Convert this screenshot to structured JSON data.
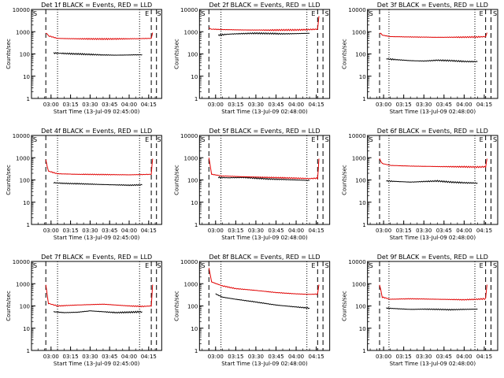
{
  "colors": {
    "events": "#000000",
    "lld": "#e00000",
    "axis": "#000000"
  },
  "chart_data": [
    {
      "type": "line",
      "title": "Det 1f BLACK = Events, RED = LLD",
      "xlabel": "Start Time (13-Jul-09 02:45:00)",
      "ylabel": "Counts/sec",
      "xlim": [
        "02:45",
        "04:25"
      ],
      "ylim": [
        1,
        10000
      ],
      "yscale": "log",
      "yticks": [
        "1",
        "10",
        "100",
        "1000",
        "10000"
      ],
      "xticks": [
        "03:00",
        "03:15",
        "03:30",
        "03:45",
        "04:00",
        "04:15"
      ],
      "markers": {
        "S_left": "S",
        "E": "E",
        "S_right": "S"
      },
      "dashed_lines": [
        "02:56",
        "04:17",
        "04:21"
      ],
      "dotted_lines": [
        "03:05",
        "04:08"
      ],
      "series": [
        {
          "color": "black",
          "x": [
            "03:02",
            "03:10",
            "03:20",
            "03:30",
            "03:40",
            "03:50",
            "04:00",
            "04:10"
          ],
          "values": [
            110,
            105,
            100,
            95,
            90,
            88,
            90,
            92
          ]
        },
        {
          "color": "red",
          "x": [
            "02:56",
            "02:58",
            "03:05",
            "03:20",
            "03:40",
            "04:00",
            "04:10",
            "04:17",
            "04:18"
          ],
          "values": [
            900,
            650,
            500,
            480,
            470,
            480,
            490,
            500,
            900
          ]
        }
      ]
    },
    {
      "type": "line",
      "title": "Det 2f BLACK = Events, RED = LLD",
      "xlabel": "Start Time (13-Jul-09 02:48:00)",
      "ylabel": "Counts/sec",
      "xlim": [
        "02:48",
        "04:25"
      ],
      "ylim": [
        1,
        10000
      ],
      "yscale": "log",
      "yticks": [
        "1",
        "10",
        "100",
        "1000",
        "10000"
      ],
      "xticks": [
        "03:00",
        "03:15",
        "03:30",
        "03:45",
        "04:00",
        "04:15"
      ],
      "markers": {
        "S_left": "S",
        "E": "E",
        "S_right": "S"
      },
      "dashed_lines": [
        "02:55",
        "04:16",
        "04:20"
      ],
      "dotted_lines": [
        "03:04",
        "04:08"
      ],
      "series": [
        {
          "color": "black",
          "x": [
            "03:02",
            "03:10",
            "03:20",
            "03:30",
            "03:40",
            "03:50",
            "04:00",
            "04:10"
          ],
          "values": [
            700,
            780,
            820,
            850,
            830,
            800,
            820,
            850
          ]
        },
        {
          "color": "red",
          "x": [
            "02:55",
            "02:57",
            "03:05",
            "03:20",
            "03:40",
            "04:00",
            "04:10",
            "04:16",
            "04:17"
          ],
          "values": [
            1500,
            1300,
            1250,
            1200,
            1180,
            1200,
            1250,
            1300,
            5000
          ]
        }
      ]
    },
    {
      "type": "line",
      "title": "Det 3f BLACK = Events, RED = LLD",
      "xlabel": "Start Time (13-Jul-09 02:48:00)",
      "ylabel": "Counts/sec",
      "xlim": [
        "02:48",
        "04:25"
      ],
      "ylim": [
        1,
        10000
      ],
      "yscale": "log",
      "yticks": [
        "1",
        "10",
        "100",
        "1000",
        "10000"
      ],
      "xticks": [
        "03:00",
        "03:15",
        "03:30",
        "03:45",
        "04:00",
        "04:15"
      ],
      "markers": {
        "S_left": "S",
        "E": "E",
        "S_right": "S"
      },
      "dashed_lines": [
        "02:57",
        "04:16",
        "04:20"
      ],
      "dotted_lines": [
        "03:04",
        "04:08"
      ],
      "series": [
        {
          "color": "black",
          "x": [
            "03:02",
            "03:10",
            "03:20",
            "03:30",
            "03:40",
            "03:50",
            "04:00",
            "04:10"
          ],
          "values": [
            60,
            55,
            50,
            48,
            52,
            50,
            46,
            45
          ]
        },
        {
          "color": "red",
          "x": [
            "02:57",
            "02:59",
            "03:05",
            "03:20",
            "03:40",
            "04:00",
            "04:10",
            "04:16",
            "04:17"
          ],
          "values": [
            900,
            700,
            600,
            580,
            560,
            570,
            580,
            600,
            900
          ]
        }
      ]
    },
    {
      "type": "line",
      "title": "Det 4f BLACK = Events, RED = LLD",
      "xlabel": "Start Time (13-Jul-09 02:45:00)",
      "ylabel": "Counts/sec",
      "xlim": [
        "02:45",
        "04:25"
      ],
      "ylim": [
        1,
        10000
      ],
      "yscale": "log",
      "yticks": [
        "1",
        "10",
        "100",
        "1000",
        "10000"
      ],
      "xticks": [
        "03:00",
        "03:15",
        "03:30",
        "03:45",
        "04:00",
        "04:15"
      ],
      "markers": {
        "S_left": "S",
        "E": "E",
        "S_right": "S"
      },
      "dashed_lines": [
        "02:56",
        "04:17",
        "04:21"
      ],
      "dotted_lines": [
        "03:05",
        "04:08"
      ],
      "series": [
        {
          "color": "black",
          "x": [
            "03:02",
            "03:10",
            "03:20",
            "03:30",
            "03:40",
            "03:50",
            "04:00",
            "04:10"
          ],
          "values": [
            75,
            70,
            68,
            65,
            62,
            60,
            58,
            60
          ]
        },
        {
          "color": "red",
          "x": [
            "02:56",
            "02:58",
            "03:05",
            "03:20",
            "03:40",
            "04:00",
            "04:10",
            "04:17",
            "04:18"
          ],
          "values": [
            800,
            250,
            190,
            180,
            175,
            170,
            175,
            180,
            900
          ]
        }
      ]
    },
    {
      "type": "line",
      "title": "Det 5f BLACK = Events, RED = LLD",
      "xlabel": "Start Time (13-Jul-09 02:48:00)",
      "ylabel": "Counts/sec",
      "xlim": [
        "02:48",
        "04:25"
      ],
      "ylim": [
        1,
        10000
      ],
      "yscale": "log",
      "yticks": [
        "1",
        "10",
        "100",
        "1000",
        "10000"
      ],
      "xticks": [
        "03:00",
        "03:15",
        "03:30",
        "03:45",
        "04:00",
        "04:15"
      ],
      "markers": {
        "S_left": "S",
        "E": "E",
        "S_right": "S"
      },
      "dashed_lines": [
        "02:55",
        "04:16",
        "04:20"
      ],
      "dotted_lines": [
        "03:04",
        "04:08"
      ],
      "series": [
        {
          "color": "black",
          "x": [
            "03:02",
            "03:10",
            "03:20",
            "03:30",
            "03:40",
            "03:50",
            "04:00",
            "04:10"
          ],
          "values": [
            130,
            125,
            130,
            120,
            110,
            105,
            100,
            95
          ]
        },
        {
          "color": "red",
          "x": [
            "02:55",
            "02:57",
            "03:05",
            "03:20",
            "03:40",
            "04:00",
            "04:10",
            "04:16",
            "04:17"
          ],
          "values": [
            1000,
            180,
            150,
            140,
            130,
            120,
            115,
            120,
            900
          ]
        }
      ]
    },
    {
      "type": "line",
      "title": "Det 6f BLACK = Events, RED = LLD",
      "xlabel": "Start Time (13-Jul-09 02:48:00)",
      "ylabel": "Counts/sec",
      "xlim": [
        "02:48",
        "04:25"
      ],
      "ylim": [
        1,
        10000
      ],
      "yscale": "log",
      "yticks": [
        "1",
        "10",
        "100",
        "1000",
        "10000"
      ],
      "xticks": [
        "03:00",
        "03:15",
        "03:30",
        "03:45",
        "04:00",
        "04:15"
      ],
      "markers": {
        "S_left": "S",
        "E": "E",
        "S_right": "S"
      },
      "dashed_lines": [
        "02:57",
        "04:16",
        "04:20"
      ],
      "dotted_lines": [
        "03:04",
        "04:08"
      ],
      "series": [
        {
          "color": "black",
          "x": [
            "03:02",
            "03:10",
            "03:20",
            "03:30",
            "03:40",
            "03:50",
            "04:00",
            "04:10"
          ],
          "values": [
            90,
            85,
            80,
            85,
            90,
            80,
            75,
            72
          ]
        },
        {
          "color": "red",
          "x": [
            "02:57",
            "02:59",
            "03:05",
            "03:20",
            "03:40",
            "04:00",
            "04:10",
            "04:16",
            "04:17"
          ],
          "values": [
            900,
            550,
            450,
            420,
            400,
            390,
            380,
            390,
            900
          ]
        }
      ]
    },
    {
      "type": "line",
      "title": "Det 7f BLACK = Events, RED = LLD",
      "xlabel": "Start Time (13-Jul-09 02:45:00)",
      "ylabel": "Counts/sec",
      "xlim": [
        "02:45",
        "04:25"
      ],
      "ylim": [
        1,
        10000
      ],
      "yscale": "log",
      "yticks": [
        "1",
        "10",
        "100",
        "1000",
        "10000"
      ],
      "xticks": [
        "03:00",
        "03:15",
        "03:30",
        "03:45",
        "04:00",
        "04:15"
      ],
      "markers": {
        "S_left": "S",
        "E": "E",
        "S_right": "S"
      },
      "dashed_lines": [
        "02:56",
        "04:17",
        "04:21"
      ],
      "dotted_lines": [
        "03:05",
        "04:08"
      ],
      "series": [
        {
          "color": "black",
          "x": [
            "03:02",
            "03:10",
            "03:20",
            "03:30",
            "03:40",
            "03:50",
            "04:00",
            "04:10"
          ],
          "values": [
            55,
            50,
            52,
            60,
            55,
            50,
            52,
            55
          ]
        },
        {
          "color": "red",
          "x": [
            "02:56",
            "02:58",
            "03:05",
            "03:20",
            "03:40",
            "04:00",
            "04:10",
            "04:17",
            "04:18"
          ],
          "values": [
            900,
            130,
            100,
            110,
            120,
            100,
            95,
            100,
            900
          ]
        }
      ]
    },
    {
      "type": "line",
      "title": "Det 8f BLACK = Events, RED = LLD",
      "xlabel": "Start Time (13-Jul-09 02:48:00)",
      "ylabel": "Counts/sec",
      "xlim": [
        "02:48",
        "04:25"
      ],
      "ylim": [
        1,
        10000
      ],
      "yscale": "log",
      "yticks": [
        "1",
        "10",
        "100",
        "1000",
        "10000"
      ],
      "xticks": [
        "03:00",
        "03:15",
        "03:30",
        "03:45",
        "04:00",
        "04:15"
      ],
      "markers": {
        "S_left": "S",
        "E": "E",
        "S_right": "S"
      },
      "dashed_lines": [
        "02:55",
        "04:16",
        "04:20"
      ],
      "dotted_lines": [
        "03:04",
        "04:08"
      ],
      "series": [
        {
          "color": "black",
          "x": [
            "03:00",
            "03:05",
            "03:15",
            "03:30",
            "03:45",
            "04:00",
            "04:10"
          ],
          "values": [
            350,
            250,
            200,
            150,
            110,
            90,
            80
          ]
        },
        {
          "color": "red",
          "x": [
            "02:55",
            "02:57",
            "03:05",
            "03:15",
            "03:30",
            "03:45",
            "04:00",
            "04:10",
            "04:16",
            "04:17"
          ],
          "values": [
            5000,
            1200,
            800,
            600,
            500,
            400,
            350,
            330,
            340,
            900
          ]
        }
      ]
    },
    {
      "type": "line",
      "title": "Det 9f BLACK = Events, RED = LLD",
      "xlabel": "Start Time (13-Jul-09 02:48:00)",
      "ylabel": "Counts/sec",
      "xlim": [
        "02:48",
        "04:25"
      ],
      "ylim": [
        1,
        10000
      ],
      "yscale": "log",
      "yticks": [
        "1",
        "10",
        "100",
        "1000",
        "10000"
      ],
      "xticks": [
        "03:00",
        "03:15",
        "03:30",
        "03:45",
        "04:00",
        "04:15"
      ],
      "markers": {
        "S_left": "S",
        "E": "E",
        "S_right": "S"
      },
      "dashed_lines": [
        "02:57",
        "04:16",
        "04:20"
      ],
      "dotted_lines": [
        "03:04",
        "04:08"
      ],
      "series": [
        {
          "color": "black",
          "x": [
            "03:02",
            "03:10",
            "03:20",
            "03:30",
            "03:40",
            "03:50",
            "04:00",
            "04:10"
          ],
          "values": [
            80,
            75,
            70,
            72,
            70,
            68,
            70,
            72
          ]
        },
        {
          "color": "red",
          "x": [
            "02:57",
            "02:59",
            "03:05",
            "03:20",
            "03:40",
            "04:00",
            "04:10",
            "04:16",
            "04:17"
          ],
          "values": [
            900,
            250,
            200,
            210,
            200,
            190,
            200,
            210,
            900
          ]
        }
      ]
    }
  ]
}
